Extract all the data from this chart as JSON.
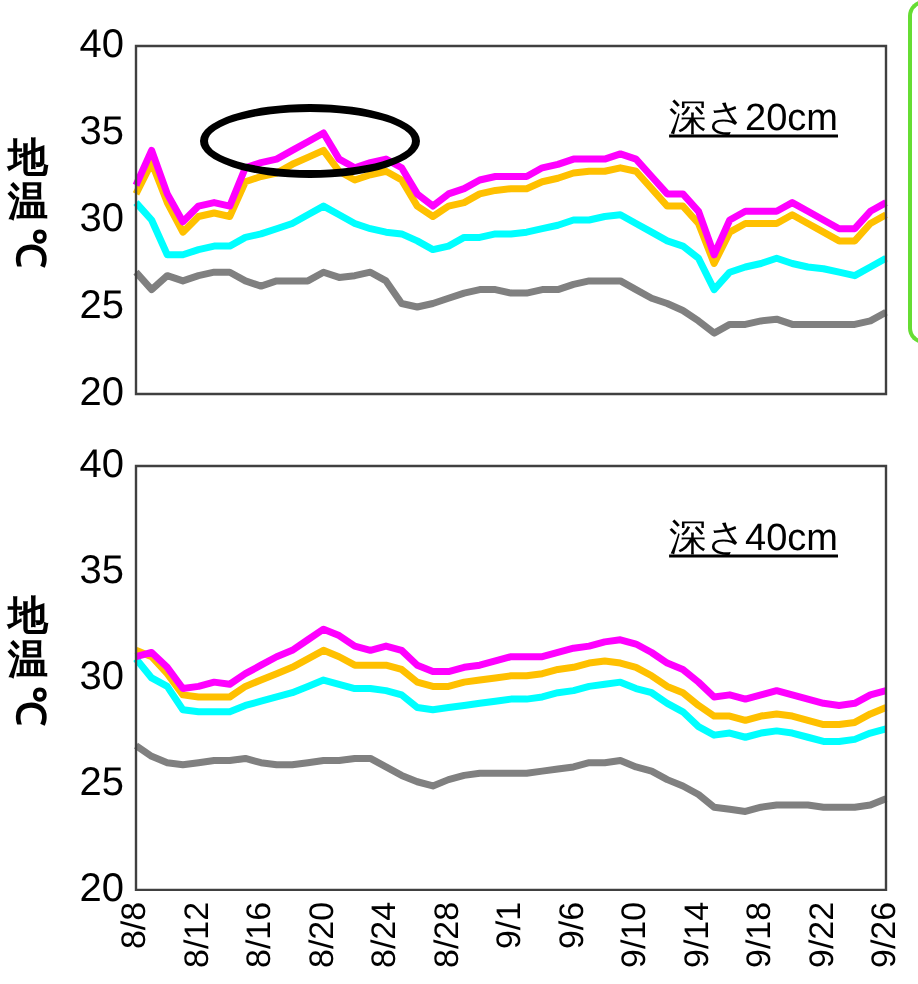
{
  "chart_data": [
    {
      "type": "line",
      "ylabel": "地温℃",
      "annotations": [
        "深さ20cm"
      ],
      "grid": false,
      "tick_labels": "y",
      "marker": "none",
      "categories": [
        null,
        null,
        null,
        null,
        null,
        null,
        null,
        null,
        null,
        null,
        null,
        null,
        null,
        null,
        null,
        null,
        null,
        null,
        null,
        null,
        null,
        null,
        null,
        null,
        null,
        null,
        null,
        null,
        null,
        null,
        null,
        null,
        null,
        null,
        null,
        null,
        null,
        null,
        null,
        null,
        null,
        null,
        null,
        null,
        null,
        null,
        null,
        null,
        null
      ],
      "ylim": [
        20,
        40
      ],
      "yticks": [
        20,
        25,
        30,
        35,
        40
      ],
      "series": [
        {
          "color": "#ff00ff",
          "values": [
            32,
            34,
            31.5,
            29.9,
            30.8,
            31,
            30.8,
            33,
            33.3,
            33.5,
            34,
            34.5,
            35,
            33.5,
            33,
            33.3,
            33.5,
            33,
            31.5,
            30.8,
            31.5,
            31.8,
            32.3,
            32.5,
            32.5,
            32.5,
            33,
            33.2,
            33.5,
            33.5,
            33.5,
            33.8,
            33.5,
            32.5,
            31.5,
            31.5,
            30.5,
            28,
            30,
            30.5,
            30.5,
            30.5,
            31,
            30.5,
            30,
            29.5,
            29.5,
            30.5,
            31
          ]
        },
        {
          "color": "#ffc000",
          "values": [
            31.5,
            33.3,
            31,
            29.3,
            30.2,
            30.4,
            30.2,
            32.2,
            32.5,
            32.7,
            33.2,
            33.6,
            34,
            32.8,
            32.3,
            32.6,
            32.8,
            32.3,
            30.8,
            30.2,
            30.8,
            31,
            31.5,
            31.7,
            31.8,
            31.8,
            32.2,
            32.4,
            32.7,
            32.8,
            32.8,
            33,
            32.8,
            31.8,
            30.8,
            30.8,
            29.8,
            27.5,
            29.3,
            29.8,
            29.8,
            29.8,
            30.3,
            29.8,
            29.3,
            28.8,
            28.8,
            29.8,
            30.3
          ]
        },
        {
          "color": "#00ffff",
          "values": [
            31,
            30,
            28,
            28,
            28.3,
            28.5,
            28.5,
            29,
            29.2,
            29.5,
            29.8,
            30.3,
            30.8,
            30.3,
            29.8,
            29.5,
            29.3,
            29.2,
            28.8,
            28.3,
            28.5,
            29,
            29,
            29.2,
            29.2,
            29.3,
            29.5,
            29.7,
            30,
            30,
            30.2,
            30.3,
            29.8,
            29.3,
            28.8,
            28.5,
            27.8,
            26,
            27,
            27.3,
            27.5,
            27.8,
            27.5,
            27.3,
            27.2,
            27,
            26.8,
            27.3,
            27.8
          ]
        },
        {
          "color": "#808080",
          "values": [
            27,
            26,
            26.8,
            26.5,
            26.8,
            27,
            27,
            26.5,
            26.2,
            26.5,
            26.5,
            26.5,
            27,
            26.7,
            26.8,
            27,
            26.5,
            25.2,
            25,
            25.2,
            25.5,
            25.8,
            26,
            26,
            25.8,
            25.8,
            26,
            26,
            26.3,
            26.5,
            26.5,
            26.5,
            26,
            25.5,
            25.2,
            24.8,
            24.2,
            23.5,
            24,
            24,
            24.2,
            24.3,
            24,
            24,
            24,
            24,
            24,
            24.2,
            24.7
          ]
        }
      ]
    },
    {
      "type": "line",
      "ylabel": "地温℃",
      "annotations": [
        "深さ40cm"
      ],
      "grid": false,
      "marker": "none",
      "categories": [
        "8/8",
        null,
        null,
        null,
        "8/12",
        null,
        null,
        null,
        "8/16",
        null,
        null,
        null,
        "8/20",
        null,
        null,
        null,
        "8/24",
        null,
        null,
        null,
        "8/28",
        null,
        null,
        null,
        "9/1",
        null,
        null,
        null,
        "9/6",
        null,
        null,
        null,
        "9/10",
        null,
        null,
        null,
        "9/14",
        null,
        null,
        null,
        "9/18",
        null,
        null,
        null,
        "9/22",
        null,
        null,
        null,
        "9/26"
      ],
      "ylim": [
        20,
        40
      ],
      "yticks": [
        20,
        25,
        30,
        35,
        40
      ],
      "series": [
        {
          "color": "#ff00ff",
          "values": [
            31,
            31.2,
            30.5,
            29.5,
            29.6,
            29.8,
            29.7,
            30.2,
            30.6,
            31,
            31.3,
            31.8,
            32.3,
            32,
            31.5,
            31.3,
            31.5,
            31.3,
            30.6,
            30.3,
            30.3,
            30.5,
            30.6,
            30.8,
            31,
            31,
            31,
            31.2,
            31.4,
            31.5,
            31.7,
            31.8,
            31.6,
            31.2,
            30.7,
            30.4,
            29.8,
            29.1,
            29.2,
            29,
            29.2,
            29.4,
            29.2,
            29,
            28.8,
            28.7,
            28.8,
            29.2,
            29.4
          ]
        },
        {
          "color": "#ffc000",
          "values": [
            31.3,
            31,
            30.2,
            29.2,
            29.1,
            29.1,
            29.1,
            29.6,
            29.9,
            30.2,
            30.5,
            30.9,
            31.3,
            31,
            30.6,
            30.6,
            30.6,
            30.4,
            29.8,
            29.6,
            29.6,
            29.8,
            29.9,
            30,
            30.1,
            30.1,
            30.2,
            30.4,
            30.5,
            30.7,
            30.8,
            30.7,
            30.5,
            30.1,
            29.6,
            29.3,
            28.7,
            28.2,
            28.2,
            28,
            28.2,
            28.3,
            28.2,
            28,
            27.8,
            27.8,
            27.9,
            28.3,
            28.6
          ]
        },
        {
          "color": "#00ffff",
          "values": [
            30.9,
            30,
            29.6,
            28.5,
            28.4,
            28.4,
            28.4,
            28.7,
            28.9,
            29.1,
            29.3,
            29.6,
            29.9,
            29.7,
            29.5,
            29.5,
            29.4,
            29.2,
            28.6,
            28.5,
            28.6,
            28.7,
            28.8,
            28.9,
            29,
            29,
            29.1,
            29.3,
            29.4,
            29.6,
            29.7,
            29.8,
            29.5,
            29.3,
            28.8,
            28.4,
            27.7,
            27.3,
            27.4,
            27.2,
            27.4,
            27.5,
            27.4,
            27.2,
            27,
            27,
            27.1,
            27.4,
            27.6
          ]
        },
        {
          "color": "#808080",
          "values": [
            26.8,
            26.3,
            26,
            25.9,
            26,
            26.1,
            26.1,
            26.2,
            26,
            25.9,
            25.9,
            26,
            26.1,
            26.1,
            26.2,
            26.2,
            25.8,
            25.4,
            25.1,
            24.9,
            25.2,
            25.4,
            25.5,
            25.5,
            25.5,
            25.5,
            25.6,
            25.7,
            25.8,
            26,
            26,
            26.1,
            25.8,
            25.6,
            25.2,
            24.9,
            24.5,
            23.9,
            23.8,
            23.7,
            23.9,
            24,
            24,
            24,
            23.9,
            23.9,
            23.9,
            24,
            24.3
          ]
        }
      ]
    }
  ]
}
